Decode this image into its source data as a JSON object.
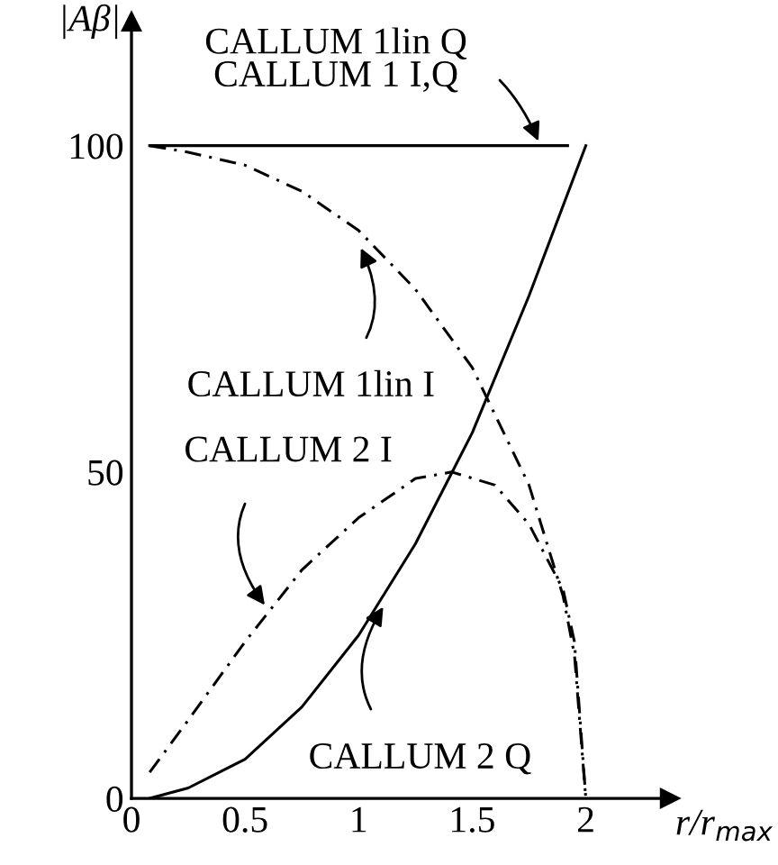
{
  "chart_data": {
    "type": "line",
    "xlabel": "r/r$_{max}$",
    "ylabel": "|Aβ|",
    "xlim": [
      0,
      2.37
    ],
    "ylim": [
      0,
      119
    ],
    "xticks": [
      0,
      0.5,
      1,
      1.5,
      2
    ],
    "yticks": [
      0,
      50,
      100
    ],
    "grid": false,
    "legend": false,
    "marker": "none",
    "series": [
      {
        "color": "#000000",
        "line_style": "solid",
        "x": [
          0.08,
          0.5,
          1,
          1.5,
          1.92
        ],
        "values": [
          100,
          100,
          100,
          100,
          100
        ]
      },
      {
        "color": "#000000",
        "line_style": "dashdot",
        "x": [
          0.08,
          0.25,
          0.5,
          0.75,
          1,
          1.25,
          1.5,
          1.75,
          1.9,
          1.95,
          2
        ],
        "values": [
          100,
          99,
          97,
          93,
          87,
          78,
          66,
          48,
          31,
          22,
          0
        ]
      },
      {
        "color": "#000000",
        "line_style": "dashdot",
        "x": [
          0.08,
          0.25,
          0.5,
          0.75,
          1,
          1.25,
          1.41,
          1.6,
          1.75,
          1.9,
          1.95,
          2
        ],
        "values": [
          4,
          12,
          24,
          35,
          43,
          49,
          50,
          48,
          42,
          32,
          24,
          0
        ]
      },
      {
        "color": "#000000",
        "line_style": "solid",
        "x": [
          0.08,
          0.25,
          0.5,
          0.75,
          1,
          1.25,
          1.5,
          1.75,
          2
        ],
        "values": [
          0,
          1.6,
          6,
          14,
          25,
          39,
          56,
          77,
          100
        ]
      }
    ],
    "annotations": [
      {
        "text": "CALLUM 1lin Q\nCALLUM 1 I,Q",
        "x": 1.8,
        "y": 100
      },
      {
        "text": "CALLUM 1lin I",
        "x": 1.0,
        "y": 85
      },
      {
        "text": "CALLUM 2 I",
        "x": 0.6,
        "y": 29
      },
      {
        "text": "CALLUM 2 Q",
        "x": 1.12,
        "y": 30
      }
    ]
  }
}
